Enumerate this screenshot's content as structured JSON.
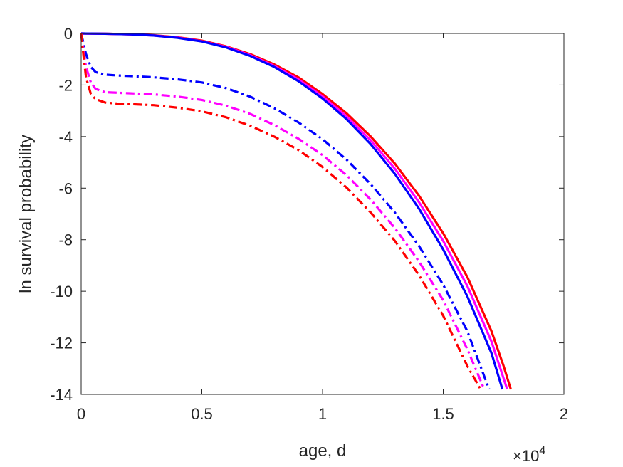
{
  "chart_data": {
    "type": "line",
    "xlabel": "age, d",
    "ylabel": "ln survival probability",
    "x_exponent_label": "×10",
    "x_exponent_power": "4",
    "xlim": [
      0,
      20000
    ],
    "ylim": [
      -14,
      0
    ],
    "x_ticks": [
      0,
      5000,
      10000,
      15000,
      20000
    ],
    "x_tick_labels": [
      "0",
      "0.5",
      "1",
      "1.5",
      "2"
    ],
    "y_ticks": [
      0,
      -2,
      -4,
      -6,
      -8,
      -10,
      -12,
      -14
    ],
    "y_tick_labels": [
      "0",
      "-2",
      "-4",
      "-6",
      "-8",
      "-10",
      "-12",
      "-14"
    ],
    "grid": false,
    "series": [
      {
        "color": "#ff0000",
        "style": "solid",
        "x": [
          0,
          1000,
          2000,
          3000,
          4000,
          5000,
          6000,
          7000,
          8000,
          9000,
          10000,
          11000,
          12000,
          13000,
          14000,
          15000,
          16000,
          17000,
          17500,
          17800
        ],
        "y": [
          0,
          -0.01,
          -0.03,
          -0.07,
          -0.15,
          -0.28,
          -0.5,
          -0.8,
          -1.2,
          -1.7,
          -2.35,
          -3.1,
          -4.0,
          -5.05,
          -6.3,
          -7.75,
          -9.45,
          -11.55,
          -12.9,
          -13.8
        ]
      },
      {
        "color": "#ff00ff",
        "style": "solid",
        "x": [
          0,
          1000,
          2000,
          3000,
          4000,
          5000,
          6000,
          7000,
          8000,
          9000,
          10000,
          11000,
          12000,
          13000,
          14000,
          15000,
          16000,
          17000,
          17650
        ],
        "y": [
          0,
          -0.01,
          -0.03,
          -0.08,
          -0.16,
          -0.3,
          -0.52,
          -0.84,
          -1.26,
          -1.78,
          -2.44,
          -3.22,
          -4.15,
          -5.25,
          -6.55,
          -8.05,
          -9.8,
          -11.95,
          -13.8
        ]
      },
      {
        "color": "#0000ff",
        "style": "solid",
        "x": [
          0,
          1000,
          2000,
          3000,
          4000,
          5000,
          6000,
          7000,
          8000,
          9000,
          10000,
          11000,
          12000,
          13000,
          14000,
          15000,
          16000,
          17000,
          17450
        ],
        "y": [
          0,
          -0.01,
          -0.03,
          -0.08,
          -0.17,
          -0.31,
          -0.54,
          -0.87,
          -1.3,
          -1.85,
          -2.52,
          -3.33,
          -4.3,
          -5.45,
          -6.8,
          -8.38,
          -10.2,
          -12.4,
          -13.8
        ]
      },
      {
        "color": "#0000ff",
        "style": "dashdot",
        "x": [
          0,
          100,
          200,
          400,
          600,
          1000,
          1500,
          2000,
          3000,
          4000,
          5000,
          6000,
          7000,
          8000,
          9000,
          10000,
          11000,
          12000,
          13000,
          14000,
          15000,
          16000,
          16900
        ],
        "y": [
          0,
          -0.4,
          -0.8,
          -1.3,
          -1.5,
          -1.6,
          -1.63,
          -1.65,
          -1.7,
          -1.78,
          -1.9,
          -2.12,
          -2.45,
          -2.9,
          -3.45,
          -4.1,
          -4.9,
          -5.85,
          -6.95,
          -8.25,
          -9.75,
          -11.55,
          -13.8
        ]
      },
      {
        "color": "#ff00ff",
        "style": "dashdot",
        "x": [
          0,
          100,
          200,
          400,
          600,
          1000,
          1500,
          2000,
          3000,
          4000,
          5000,
          6000,
          7000,
          8000,
          9000,
          10000,
          11000,
          12000,
          13000,
          14000,
          15000,
          16000,
          16700
        ],
        "y": [
          0,
          -0.7,
          -1.3,
          -1.9,
          -2.15,
          -2.28,
          -2.3,
          -2.32,
          -2.36,
          -2.45,
          -2.58,
          -2.8,
          -3.12,
          -3.55,
          -4.08,
          -4.72,
          -5.5,
          -6.45,
          -7.55,
          -8.85,
          -10.35,
          -12.25,
          -13.8
        ]
      },
      {
        "color": "#ff0000",
        "style": "dashdot",
        "x": [
          0,
          100,
          200,
          400,
          600,
          1000,
          1500,
          2000,
          3000,
          4000,
          5000,
          6000,
          7000,
          8000,
          9000,
          10000,
          11000,
          12000,
          13000,
          14000,
          15000,
          16000,
          16550
        ],
        "y": [
          0,
          -0.9,
          -1.7,
          -2.35,
          -2.55,
          -2.68,
          -2.72,
          -2.74,
          -2.78,
          -2.88,
          -3.02,
          -3.25,
          -3.58,
          -4.0,
          -4.52,
          -5.18,
          -5.98,
          -6.95,
          -8.05,
          -9.38,
          -10.95,
          -12.9,
          -13.8
        ]
      }
    ]
  }
}
